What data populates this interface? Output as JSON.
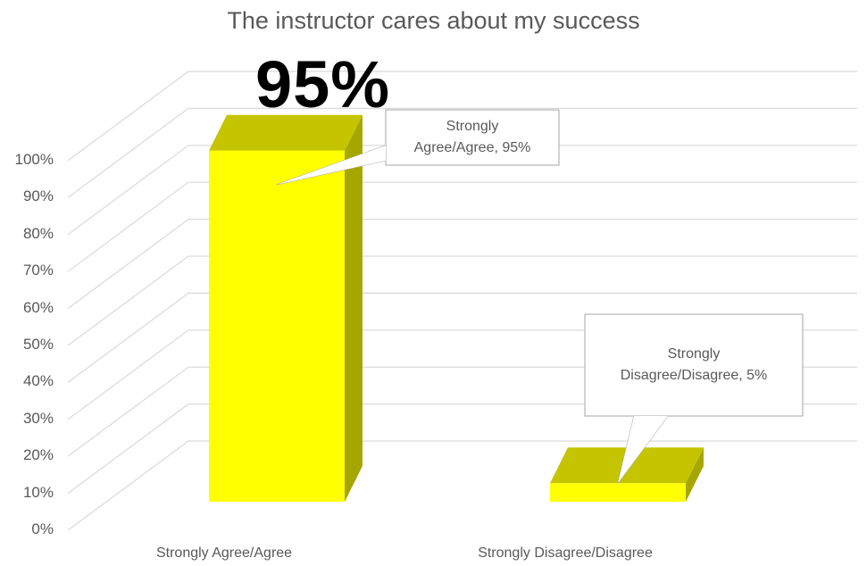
{
  "chart_data": {
    "type": "bar3d",
    "title": "The instructor cares about my success",
    "categories": [
      "Strongly Agree/Agree",
      "Strongly Disagree/Disagree"
    ],
    "values": [
      95,
      5
    ],
    "value_labels": [
      "Strongly Agree/Agree, 95%",
      "Strongly Disagree/Disagree, 5%"
    ],
    "annotation": "95%",
    "color": "#ffff00",
    "ylim": [
      0,
      100
    ],
    "yticks": [
      {
        "value": 0,
        "label": "0%"
      },
      {
        "value": 10,
        "label": "10%"
      },
      {
        "value": 20,
        "label": "20%"
      },
      {
        "value": 30,
        "label": "30%"
      },
      {
        "value": 40,
        "label": "40%"
      },
      {
        "value": 50,
        "label": "50%"
      },
      {
        "value": 60,
        "label": "60%"
      },
      {
        "value": 70,
        "label": "70%"
      },
      {
        "value": 80,
        "label": "80%"
      },
      {
        "value": 90,
        "label": "90%"
      },
      {
        "value": 100,
        "label": "100%"
      }
    ],
    "grid": true
  }
}
